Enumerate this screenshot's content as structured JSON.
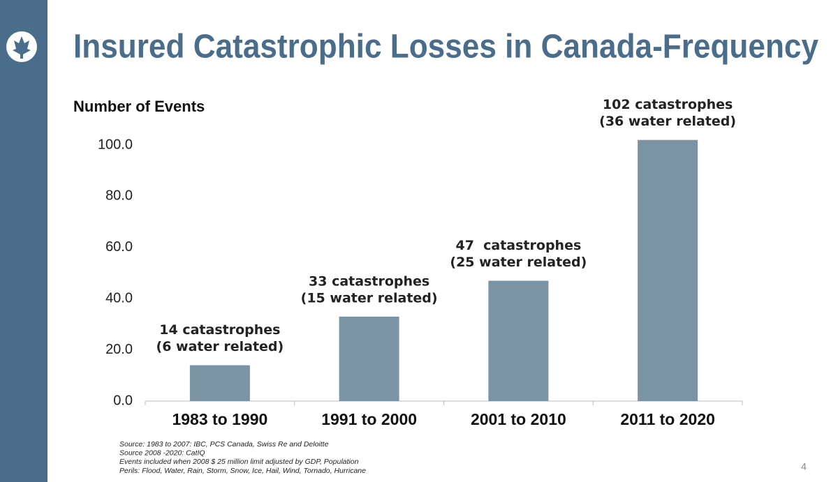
{
  "chart_data": {
    "type": "bar",
    "title": "Insured Catastrophic Losses in Canada-Frequency",
    "y_label": "Number of Events",
    "categories": [
      "1983 to 1990",
      "1991 to 2000",
      "2001 to 2010",
      "2011 to 2020"
    ],
    "values": [
      14,
      33,
      47,
      102
    ],
    "value_labels": [
      [
        "14 catastrophes",
        "(6 water related)"
      ],
      [
        "33 catastrophes",
        "(15 water related)"
      ],
      [
        "47  catastrophes",
        "(25 water related)"
      ],
      [
        "102 catastrophes",
        "(36 water related)"
      ]
    ],
    "color": "#7a94a6",
    "ylim": [
      0,
      100
    ],
    "yticks": [
      {
        "value": 0,
        "label": "0.0"
      },
      {
        "value": 20,
        "label": "20.0"
      },
      {
        "value": 40,
        "label": "40.0"
      },
      {
        "value": 60,
        "label": "60.0"
      },
      {
        "value": 80,
        "label": "80.0"
      },
      {
        "value": 100,
        "label": "100.0"
      }
    ],
    "grid": false,
    "notes": [
      "Source: 1983 to 2007: IBC, PCS Canada, Swiss Re and Deloitte",
      "Source 2008 -2020: CatIQ",
      "Events included when 2008 $ 25 million limit adjusted by GDP, Population",
      "Perils: Flood, Water, Rain, Storm, Snow, Ice, Hail, Wind, Tornado, Hurricane"
    ],
    "page_number": "4"
  }
}
